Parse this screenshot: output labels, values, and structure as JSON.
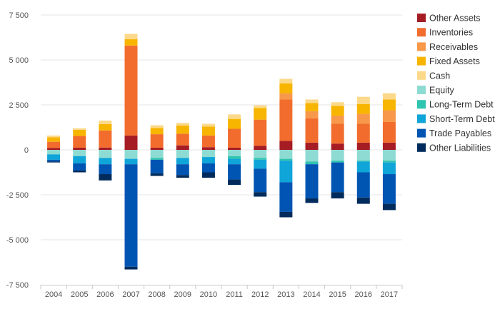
{
  "chart_data": {
    "type": "bar",
    "stacked": true,
    "title": "",
    "xlabel": "",
    "ylabel": "",
    "ylim": [
      -7500,
      7500
    ],
    "yticks": [
      7500,
      5000,
      2500,
      0,
      -2500,
      -5000,
      -7500
    ],
    "ytick_labels": [
      "7 500",
      "5 000",
      "2 500",
      "0",
      "-2 500",
      "-5 000",
      "-7 500"
    ],
    "grid": true,
    "legend_position": "right",
    "categories": [
      "2004",
      "2005",
      "2006",
      "2007",
      "2008",
      "2009",
      "2010",
      "2011",
      "2012",
      "2013",
      "2014",
      "2015",
      "2016",
      "2017"
    ],
    "series": [
      {
        "name": "Other Assets",
        "color": "#a61c24",
        "values": [
          100,
          120,
          130,
          800,
          120,
          250,
          150,
          120,
          230,
          500,
          400,
          350,
          400,
          400
        ]
      },
      {
        "name": "Inventories",
        "color": "#f26d2d",
        "values": [
          350,
          650,
          950,
          5000,
          750,
          650,
          650,
          1050,
          1450,
          2300,
          1350,
          1100,
          1050,
          1150
        ]
      },
      {
        "name": "Receivables",
        "color": "#f7984a",
        "values": [
          0,
          0,
          0,
          0,
          0,
          0,
          0,
          0,
          0,
          350,
          400,
          450,
          550,
          650
        ]
      },
      {
        "name": "Fixed Assets",
        "color": "#f7b500",
        "values": [
          250,
          350,
          350,
          350,
          350,
          450,
          500,
          550,
          650,
          550,
          450,
          550,
          550,
          600
        ]
      },
      {
        "name": "Cash",
        "color": "#fcd98a",
        "values": [
          100,
          80,
          200,
          300,
          150,
          150,
          150,
          250,
          150,
          250,
          200,
          200,
          400,
          350
        ]
      },
      {
        "name": "Equity",
        "color": "#8ddbd3",
        "values": [
          -250,
          -350,
          -450,
          -500,
          -450,
          -450,
          -400,
          -350,
          -450,
          -500,
          -650,
          -600,
          -600,
          -600
        ]
      },
      {
        "name": "Long-Term Debt",
        "color": "#2ec4b0",
        "values": [
          0,
          0,
          0,
          0,
          -100,
          0,
          0,
          -150,
          -100,
          -100,
          -150,
          -100,
          -50,
          -100
        ]
      },
      {
        "name": "Short-Term Debt",
        "color": "#0fa5d9",
        "values": [
          -300,
          -400,
          -350,
          -300,
          0,
          -350,
          -350,
          -300,
          -500,
          -1200,
          0,
          0,
          -600,
          -650
        ]
      },
      {
        "name": "Trade Payables",
        "color": "#0055b3",
        "values": [
          -100,
          -400,
          -550,
          -5700,
          -750,
          -600,
          -500,
          -850,
          -1300,
          -1650,
          -1900,
          -1650,
          -1400,
          -1650
        ]
      },
      {
        "name": "Other Liabilities",
        "color": "#002b5c",
        "values": [
          -50,
          -100,
          -350,
          -150,
          -150,
          -150,
          -300,
          -300,
          -250,
          -300,
          -250,
          -350,
          -350,
          -350
        ]
      }
    ]
  }
}
